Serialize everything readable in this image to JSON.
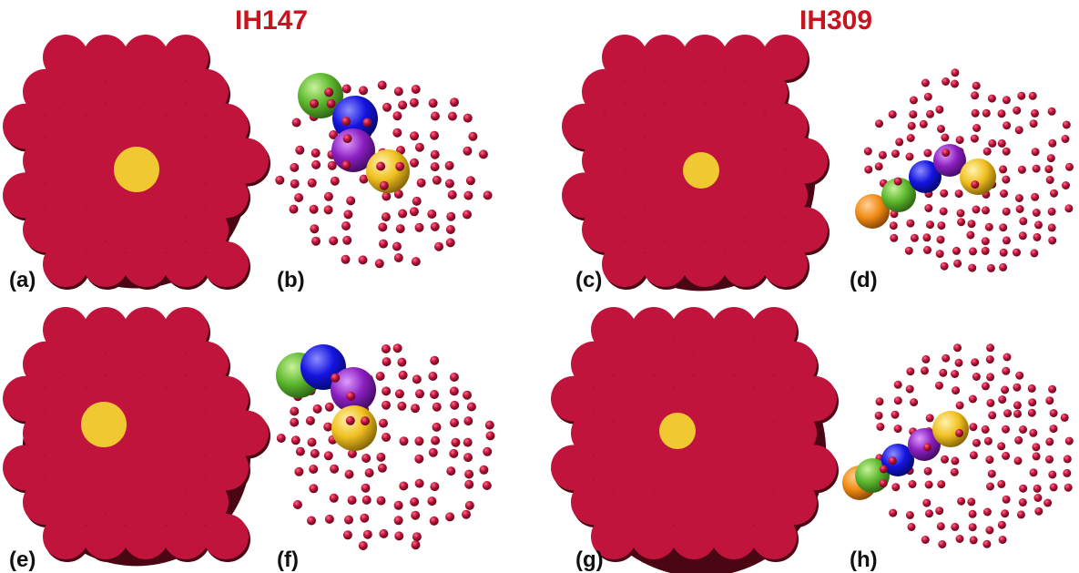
{
  "columns": [
    {
      "title": "IH147"
    },
    {
      "title": "IH309"
    }
  ],
  "panels": [
    {
      "label": "(a)",
      "kind": "cluster-surface",
      "cluster": "IH147",
      "impurity_color": "gold"
    },
    {
      "label": "(b)",
      "kind": "path-lattice",
      "cluster": "IH147",
      "path_atoms": [
        "green",
        "blue",
        "purple",
        "gold"
      ]
    },
    {
      "label": "(c)",
      "kind": "cluster-surface",
      "cluster": "IH309",
      "impurity_color": "gold"
    },
    {
      "label": "(d)",
      "kind": "path-lattice",
      "cluster": "IH309",
      "path_atoms": [
        "orange",
        "green",
        "blue",
        "purple",
        "gold"
      ]
    },
    {
      "label": "(e)",
      "kind": "cluster-surface",
      "cluster": "IH147",
      "impurity_color": "gold"
    },
    {
      "label": "(f)",
      "kind": "path-lattice",
      "cluster": "IH147",
      "path_atoms": [
        "green",
        "blue",
        "purple",
        "gold"
      ]
    },
    {
      "label": "(g)",
      "kind": "cluster-surface",
      "cluster": "IH309",
      "impurity_color": "gold"
    },
    {
      "label": "(h)",
      "kind": "path-lattice",
      "cluster": "IH309",
      "path_atoms": [
        "orange",
        "green",
        "blue",
        "purple",
        "gold"
      ]
    }
  ],
  "colors": {
    "title": "#c8141e",
    "host_atom": "#c0143c",
    "host_atom_dark": "#4a0612",
    "impurity": "#f0c832",
    "green": "#5cb82e",
    "blue": "#1414e0",
    "purple": "#8a1fc0",
    "gold": "#f0c020",
    "orange": "#f08c14"
  }
}
